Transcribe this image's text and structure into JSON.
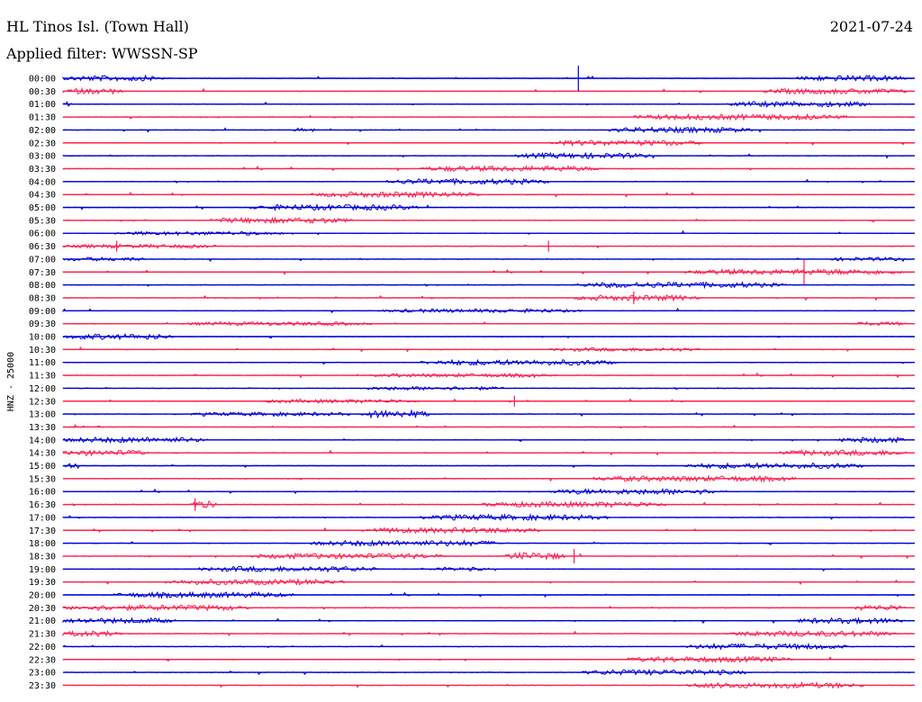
{
  "header": {
    "station": "HL Tinos Isl. (Town Hall)",
    "date": "2021-07-24",
    "filter": "Applied filter: WWSSN-SP"
  },
  "chart_data": {
    "type": "helicorder",
    "ylabel": "HNZ - 25000",
    "colors": [
      "#0000dd",
      "#ff2050"
    ],
    "rows": [
      "00:00",
      "00:30",
      "01:00",
      "01:30",
      "02:00",
      "02:30",
      "03:00",
      "03:30",
      "04:00",
      "04:30",
      "05:00",
      "05:30",
      "06:00",
      "06:30",
      "07:00",
      "07:30",
      "08:00",
      "08:30",
      "09:00",
      "09:30",
      "10:00",
      "10:30",
      "11:00",
      "11:30",
      "12:00",
      "12:30",
      "13:00",
      "13:30",
      "14:00",
      "14:30",
      "15:00",
      "15:30",
      "16:00",
      "16:30",
      "17:00",
      "17:30",
      "18:00",
      "18:30",
      "19:00",
      "19:30",
      "20:00",
      "20:30",
      "21:00",
      "21:30",
      "22:00",
      "22:30",
      "23:00",
      "23:30"
    ],
    "noise_bands": [
      [
        [
          0.0,
          0.12,
          3
        ],
        [
          0.86,
          0.99,
          3
        ]
      ],
      [
        [
          0.0,
          0.07,
          3
        ],
        [
          0.82,
          0.99,
          3
        ]
      ],
      [
        [
          0.0,
          0.01,
          3
        ],
        [
          0.78,
          0.95,
          3
        ]
      ],
      [
        [
          0.67,
          0.92,
          3
        ]
      ],
      [
        [
          0.27,
          0.3,
          2
        ],
        [
          0.64,
          0.81,
          3
        ]
      ],
      [
        [
          0.57,
          0.75,
          3
        ]
      ],
      [
        [
          0.53,
          0.69,
          3
        ]
      ],
      [
        [
          0.42,
          0.63,
          3
        ]
      ],
      [
        [
          0.38,
          0.57,
          3
        ]
      ],
      [
        [
          0.29,
          0.49,
          3
        ]
      ],
      [
        [
          0.22,
          0.42,
          3
        ]
      ],
      [
        [
          0.17,
          0.34,
          3
        ]
      ],
      [
        [
          0.06,
          0.26,
          2
        ]
      ],
      [
        [
          0.0,
          0.18,
          2
        ]
      ],
      [
        [
          0.0,
          0.1,
          2
        ],
        [
          0.9,
          0.99,
          2
        ]
      ],
      [
        [
          0.73,
          0.99,
          3
        ]
      ],
      [
        [
          0.6,
          0.85,
          3
        ]
      ],
      [
        [
          0.6,
          0.75,
          3
        ]
      ],
      [
        [
          0.37,
          0.61,
          2
        ]
      ],
      [
        [
          0.14,
          0.36,
          2
        ],
        [
          0.92,
          0.99,
          2
        ]
      ],
      [
        [
          0.0,
          0.13,
          3
        ]
      ],
      [
        [
          0.57,
          0.75,
          2
        ]
      ],
      [
        [
          0.42,
          0.65,
          3
        ]
      ],
      [
        [
          0.36,
          0.58,
          2
        ]
      ],
      [
        [
          0.35,
          0.52,
          2
        ]
      ],
      [
        [
          0.23,
          0.42,
          2
        ]
      ],
      [
        [
          0.15,
          0.34,
          2
        ],
        [
          0.35,
          0.43,
          4
        ]
      ],
      [
        [
          0.0,
          0.05,
          1
        ]
      ],
      [
        [
          0.0,
          0.17,
          3
        ],
        [
          0.91,
          0.99,
          3
        ]
      ],
      [
        [
          0.0,
          0.1,
          3
        ],
        [
          0.84,
          0.99,
          3
        ]
      ],
      [
        [
          0.0,
          0.02,
          3
        ],
        [
          0.73,
          0.94,
          3
        ]
      ],
      [
        [
          0.62,
          0.86,
          3
        ]
      ],
      [
        [
          0.57,
          0.78,
          3
        ]
      ],
      [
        [
          0.15,
          0.18,
          4
        ],
        [
          0.49,
          0.71,
          3
        ]
      ],
      [
        [
          0.42,
          0.64,
          3
        ]
      ],
      [
        [
          0.35,
          0.56,
          3
        ]
      ],
      [
        [
          0.29,
          0.52,
          3
        ]
      ],
      [
        [
          0.22,
          0.45,
          3
        ],
        [
          0.52,
          0.59,
          4
        ]
      ],
      [
        [
          0.16,
          0.37,
          3
        ],
        [
          0.43,
          0.5,
          2
        ]
      ],
      [
        [
          0.12,
          0.33,
          3
        ]
      ],
      [
        [
          0.06,
          0.27,
          3
        ]
      ],
      [
        [
          0.0,
          0.22,
          3
        ],
        [
          0.93,
          0.99,
          3
        ]
      ],
      [
        [
          0.0,
          0.13,
          3
        ],
        [
          0.86,
          0.99,
          3
        ]
      ],
      [
        [
          0.0,
          0.07,
          3
        ],
        [
          0.78,
          0.98,
          3
        ]
      ],
      [
        [
          0.73,
          0.92,
          3
        ]
      ],
      [
        [
          0.66,
          0.86,
          3
        ]
      ],
      [
        [
          0.61,
          0.8,
          3
        ]
      ],
      [
        [
          0.73,
          0.94,
          3
        ]
      ]
    ],
    "spikes": [
      {
        "row": 0,
        "x": 0.605,
        "amp": 14
      },
      {
        "row": 13,
        "x": 0.063,
        "amp": 6
      },
      {
        "row": 13,
        "x": 0.57,
        "amp": 6
      },
      {
        "row": 15,
        "x": 0.87,
        "amp": 14
      },
      {
        "row": 17,
        "x": 0.67,
        "amp": 7
      },
      {
        "row": 25,
        "x": 0.53,
        "amp": 6
      },
      {
        "row": 33,
        "x": 0.155,
        "amp": 7
      },
      {
        "row": 37,
        "x": 0.6,
        "amp": 8
      }
    ]
  }
}
